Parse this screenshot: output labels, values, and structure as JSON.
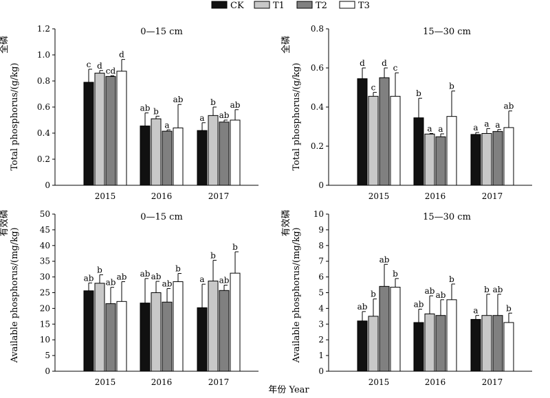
{
  "legend": {
    "placement": "top-center",
    "items": [
      {
        "name": "CK",
        "color": "#111111"
      },
      {
        "name": "T1",
        "color": "#c8c8c8"
      },
      {
        "name": "T2",
        "color": "#808080"
      },
      {
        "name": "T3",
        "color": "#ffffff"
      }
    ]
  },
  "xlabel": "年份 Year",
  "chart_data": [
    {
      "type": "bar",
      "title": "0—15 cm",
      "ylabel_cn": "全磷",
      "ylabel_en": "Total phosphorus/(g/kg)",
      "categories": [
        "2015",
        "2016",
        "2017"
      ],
      "ylim": [
        0,
        1.2
      ],
      "yticks": [
        "0",
        "0.2",
        "0.4",
        "0.6",
        "0.8",
        "1.0",
        "1.2"
      ],
      "grid": false,
      "series": [
        {
          "name": "CK",
          "values": [
            0.79,
            0.455,
            0.42
          ],
          "errors": [
            0.1,
            0.1,
            0.06
          ],
          "letters": [
            "c",
            "ab",
            "a"
          ]
        },
        {
          "name": "T1",
          "values": [
            0.86,
            0.51,
            0.535
          ],
          "errors": [
            0.02,
            0.02,
            0.065
          ],
          "letters": [
            "d",
            "b",
            "b"
          ]
        },
        {
          "name": "T2",
          "values": [
            0.835,
            0.415,
            0.485
          ],
          "errors": [
            0.005,
            0.01,
            0.015
          ],
          "letters": [
            "cd",
            "a",
            "ab"
          ]
        },
        {
          "name": "T3",
          "values": [
            0.875,
            0.44,
            0.5
          ],
          "errors": [
            0.09,
            0.18,
            0.08
          ],
          "letters": [
            "d",
            "ab",
            "ab"
          ]
        }
      ]
    },
    {
      "type": "bar",
      "title": "15—30 cm",
      "ylabel_cn": "全磷",
      "ylabel_en": "Total phosphorus/(g/kg)",
      "categories": [
        "2015",
        "2016",
        "2017"
      ],
      "ylim": [
        0,
        0.8
      ],
      "yticks": [
        "0",
        "0.2",
        "0.4",
        "0.6",
        "0.8"
      ],
      "grid": false,
      "series": [
        {
          "name": "CK",
          "values": [
            0.545,
            0.345,
            0.26
          ],
          "errors": [
            0.055,
            0.1,
            0.01
          ],
          "letters": [
            "d",
            "b",
            "a"
          ]
        },
        {
          "name": "T1",
          "values": [
            0.455,
            0.262,
            0.265
          ],
          "errors": [
            0.02,
            0.003,
            0.025
          ],
          "letters": [
            "c",
            "a",
            "a"
          ]
        },
        {
          "name": "T2",
          "values": [
            0.55,
            0.248,
            0.275
          ],
          "errors": [
            0.05,
            0.015,
            0.01
          ],
          "letters": [
            "d",
            "a",
            "a"
          ]
        },
        {
          "name": "T3",
          "values": [
            0.455,
            0.352,
            0.295
          ],
          "errors": [
            0.12,
            0.13,
            0.085
          ],
          "letters": [
            "c",
            "b",
            "ab"
          ]
        }
      ]
    },
    {
      "type": "bar",
      "title": "0—15 cm",
      "ylabel_cn": "有效磷",
      "ylabel_en": "Available phosphorus/(mg/kg)",
      "categories": [
        "2015",
        "2016",
        "2017"
      ],
      "ylim": [
        0,
        50
      ],
      "yticks": [
        "0",
        "5",
        "10",
        "15",
        "20",
        "25",
        "30",
        "35",
        "40",
        "45",
        "50"
      ],
      "grid": false,
      "series": [
        {
          "name": "CK",
          "values": [
            25.6,
            21.7,
            20.2
          ],
          "errors": [
            2.5,
            7.8,
            7.5
          ],
          "letters": [
            "ab",
            "ab",
            "a"
          ]
        },
        {
          "name": "T1",
          "values": [
            28.0,
            25.0,
            28.7
          ],
          "errors": [
            2.7,
            3.6,
            6.6
          ],
          "letters": [
            "b",
            "ab",
            "b"
          ]
        },
        {
          "name": "T2",
          "values": [
            21.5,
            22.0,
            25.7
          ],
          "errors": [
            5.2,
            4.3,
            1.7
          ],
          "letters": [
            "ab",
            "ab",
            "ab"
          ]
        },
        {
          "name": "T3",
          "values": [
            22.2,
            28.5,
            31.2
          ],
          "errors": [
            6.3,
            2.6,
            6.8
          ],
          "letters": [
            "ab",
            "b",
            "b"
          ]
        }
      ]
    },
    {
      "type": "bar",
      "title": "15—30 cm",
      "ylabel_cn": "有效磷",
      "ylabel_en": "Available phosphorus/(mg/kg)",
      "categories": [
        "2015",
        "2016",
        "2017"
      ],
      "ylim": [
        0,
        10
      ],
      "yticks": [
        "0",
        "1",
        "2",
        "3",
        "4",
        "5",
        "6",
        "7",
        "8",
        "9",
        "10"
      ],
      "grid": false,
      "series": [
        {
          "name": "CK",
          "values": [
            3.2,
            3.1,
            3.3
          ],
          "errors": [
            0.6,
            0.85,
            0.25
          ],
          "letters": [
            "ab",
            "ab",
            "a"
          ]
        },
        {
          "name": "T1",
          "values": [
            3.5,
            3.65,
            3.55
          ],
          "errors": [
            1.1,
            1.15,
            1.35
          ],
          "letters": [
            "b",
            "ab",
            "b"
          ]
        },
        {
          "name": "T2",
          "values": [
            5.4,
            3.55,
            3.55
          ],
          "errors": [
            1.4,
            1.0,
            1.35
          ],
          "letters": [
            "ab",
            "ab",
            "ab"
          ]
        },
        {
          "name": "T3",
          "values": [
            5.35,
            4.55,
            3.1
          ],
          "errors": [
            0.55,
            1.0,
            0.6
          ],
          "letters": [
            "b",
            "b",
            "b"
          ]
        }
      ]
    }
  ]
}
